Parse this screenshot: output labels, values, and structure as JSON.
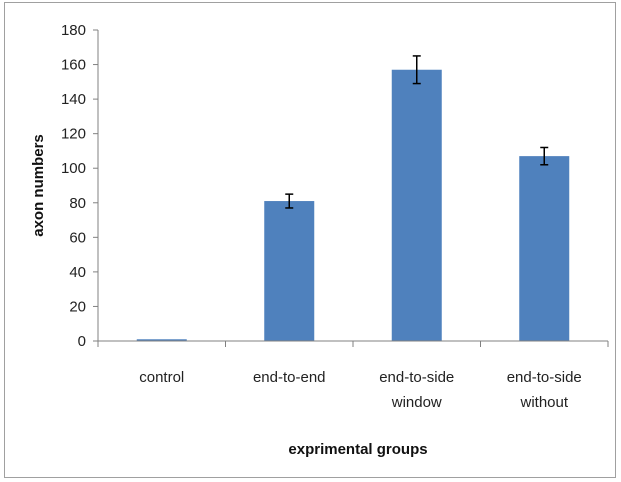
{
  "chart_data": {
    "type": "bar",
    "categories": [
      [
        "control"
      ],
      [
        "end-to-end"
      ],
      [
        "end-to-side",
        "window"
      ],
      [
        "end-to-side",
        "without"
      ]
    ],
    "values": [
      1,
      81,
      157,
      107
    ],
    "error": [
      0,
      4,
      8,
      5
    ],
    "xlabel": "exprimental groups",
    "ylabel": "axon numbers",
    "ylim": [
      0,
      180
    ],
    "yticks": [
      0,
      20,
      40,
      60,
      80,
      100,
      120,
      140,
      160,
      180
    ],
    "grid": false,
    "legend": "none",
    "bar_color": "#4f81bd"
  }
}
